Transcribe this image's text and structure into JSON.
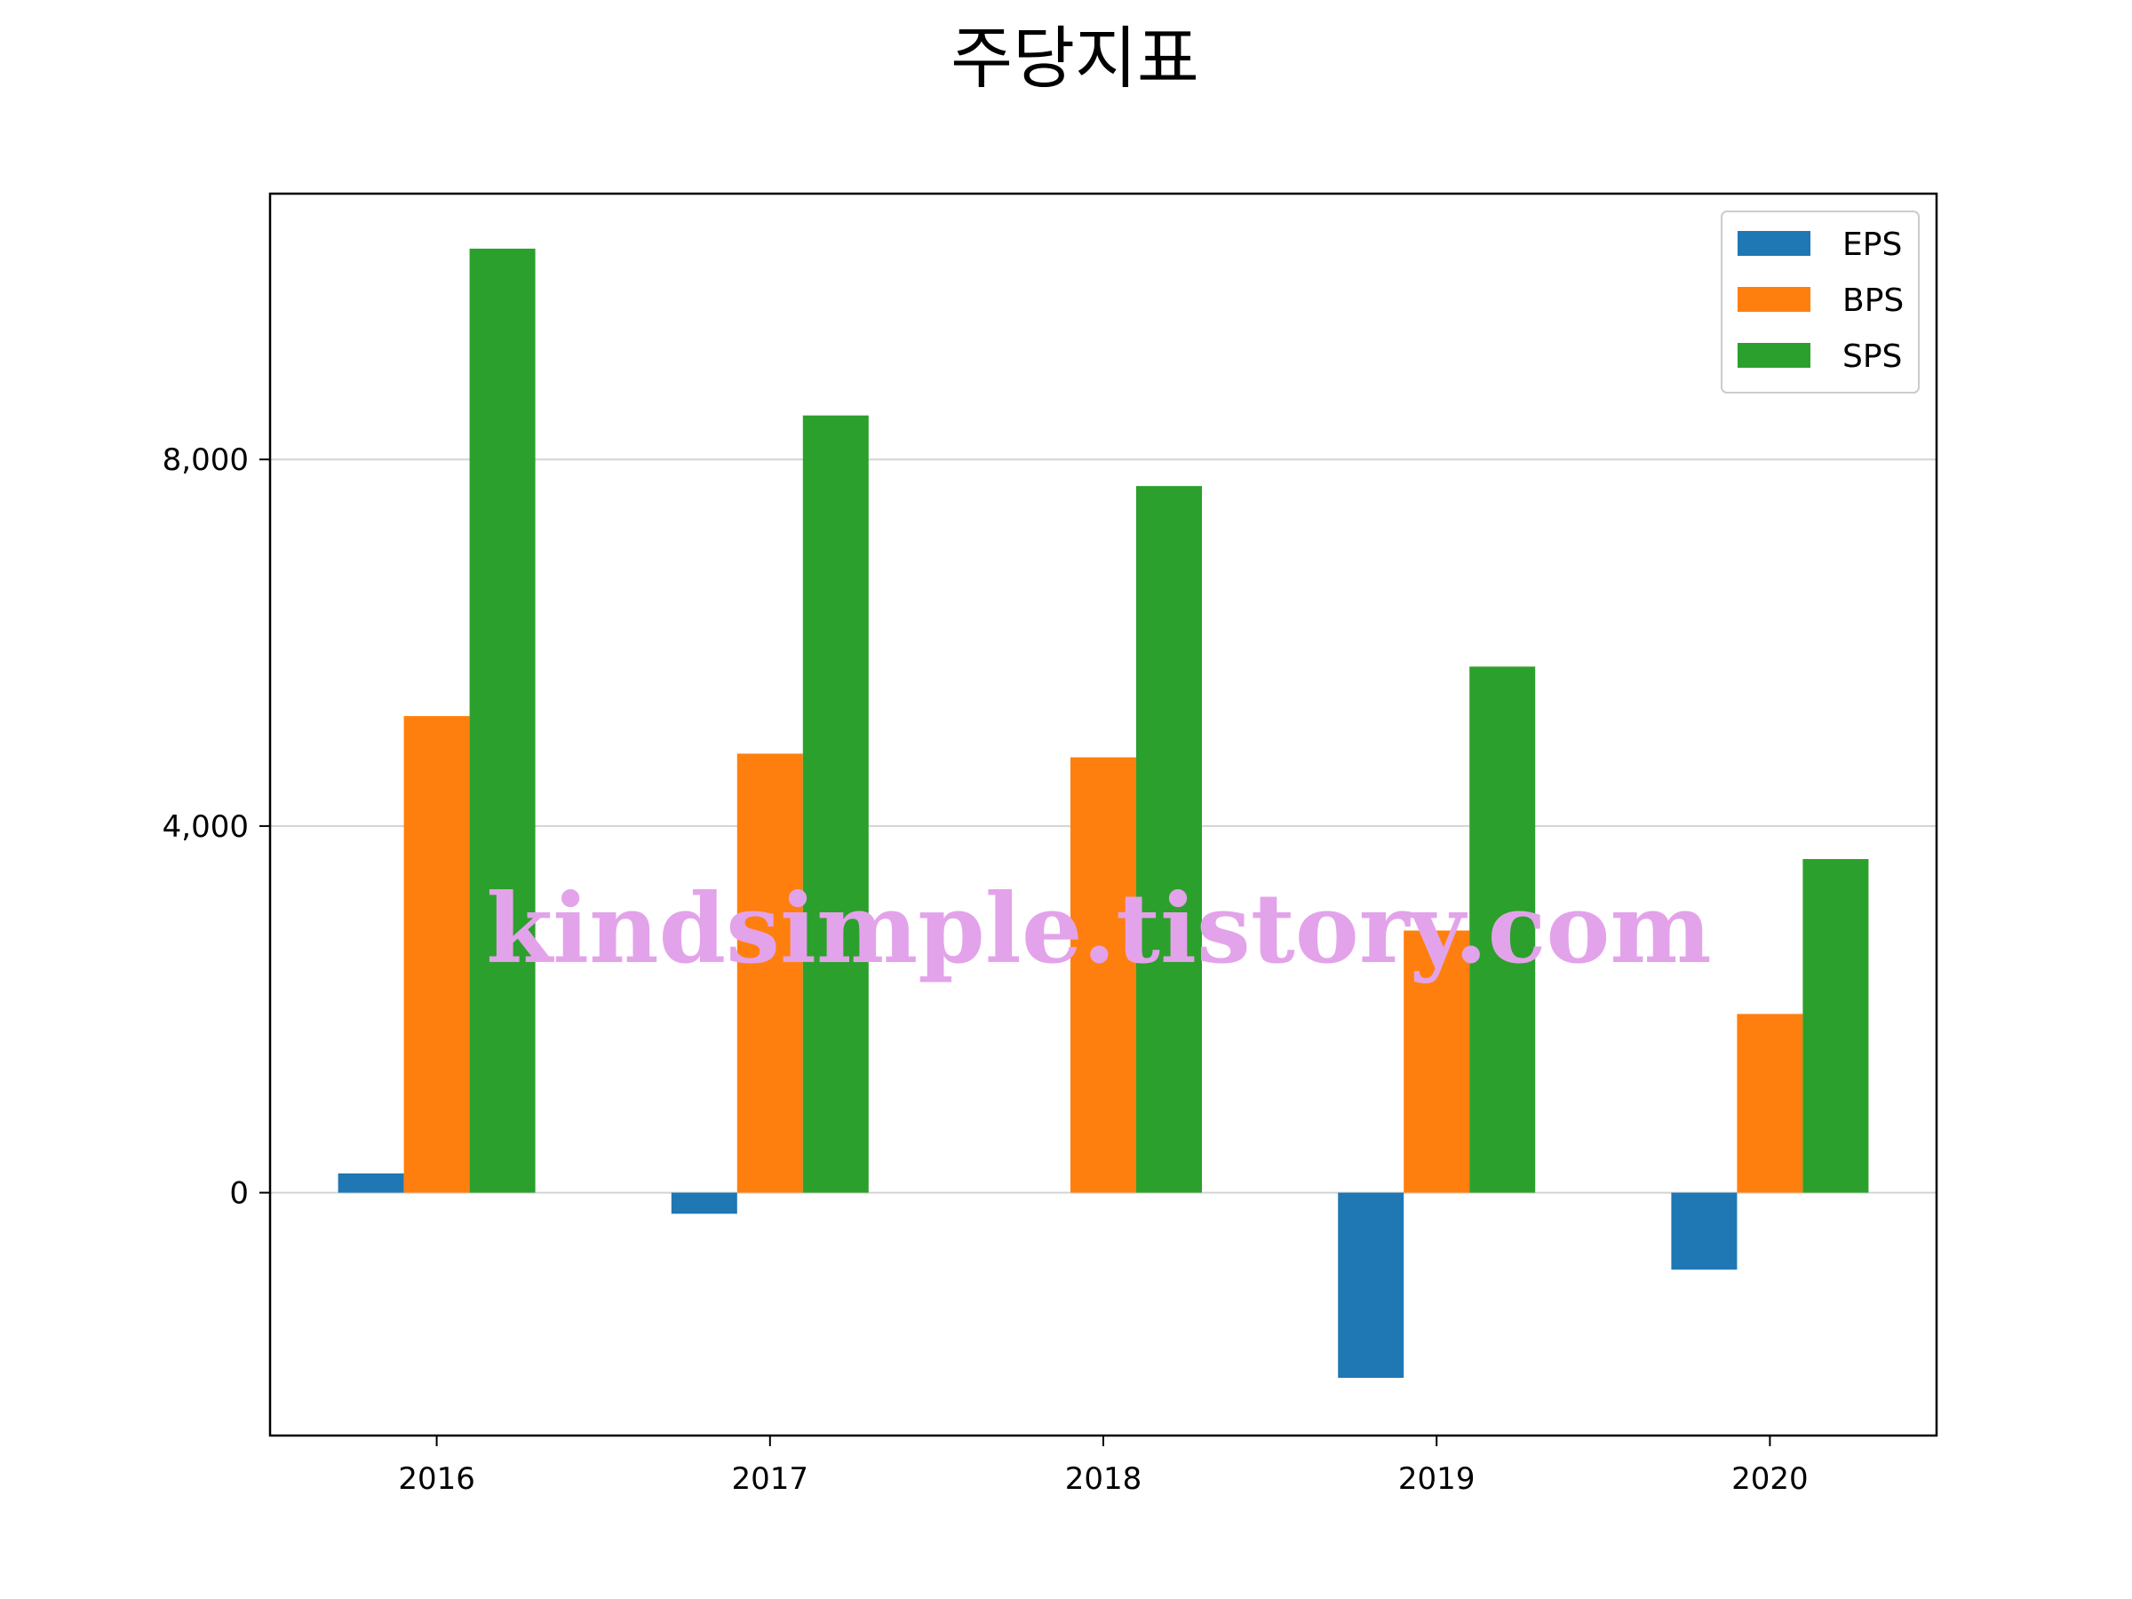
{
  "chart_data": {
    "type": "bar",
    "title": "주당지표",
    "categories": [
      "2016",
      "2017",
      "2018",
      "2019",
      "2020"
    ],
    "series": [
      {
        "name": "EPS",
        "color": "#1f77b4",
        "values": [
          210,
          -230,
          0,
          -2020,
          -840
        ]
      },
      {
        "name": "BPS",
        "color": "#ff7f0e",
        "values": [
          5200,
          4790,
          4750,
          2860,
          1950
        ]
      },
      {
        "name": "SPS",
        "color": "#2ca02c",
        "values": [
          10300,
          8480,
          7710,
          5740,
          3640
        ]
      }
    ],
    "yticks": [
      0,
      4000,
      8000
    ],
    "ytick_labels": [
      "0",
      "4,000",
      "8,000"
    ],
    "ylim": [
      -2650,
      10900
    ],
    "xlabel": "",
    "ylabel": "",
    "grid": "y",
    "legend_position": "top-right"
  },
  "watermark": "kindsimple.tistory.com"
}
